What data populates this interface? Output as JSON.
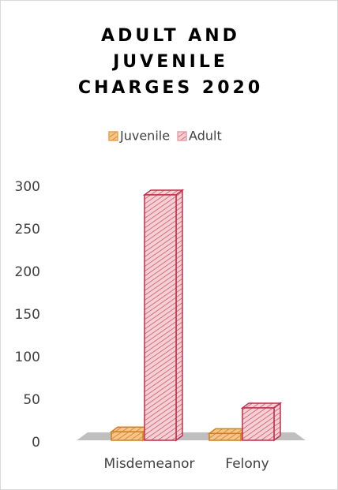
{
  "chart_data": {
    "type": "bar",
    "title": "ADULT AND JUVENILE CHARGES 2020",
    "categories": [
      "Misdemeanor",
      "Felony"
    ],
    "series": [
      {
        "name": "Juvenile",
        "color": "#f0a040",
        "values": [
          10,
          8
        ]
      },
      {
        "name": "Adult",
        "color": "#e8a0a8",
        "values": [
          288,
          38
        ]
      }
    ],
    "ylim": [
      0,
      300
    ],
    "yticks": [
      0,
      50,
      100,
      150,
      200,
      250,
      300
    ],
    "grid": false,
    "legend": "top"
  }
}
